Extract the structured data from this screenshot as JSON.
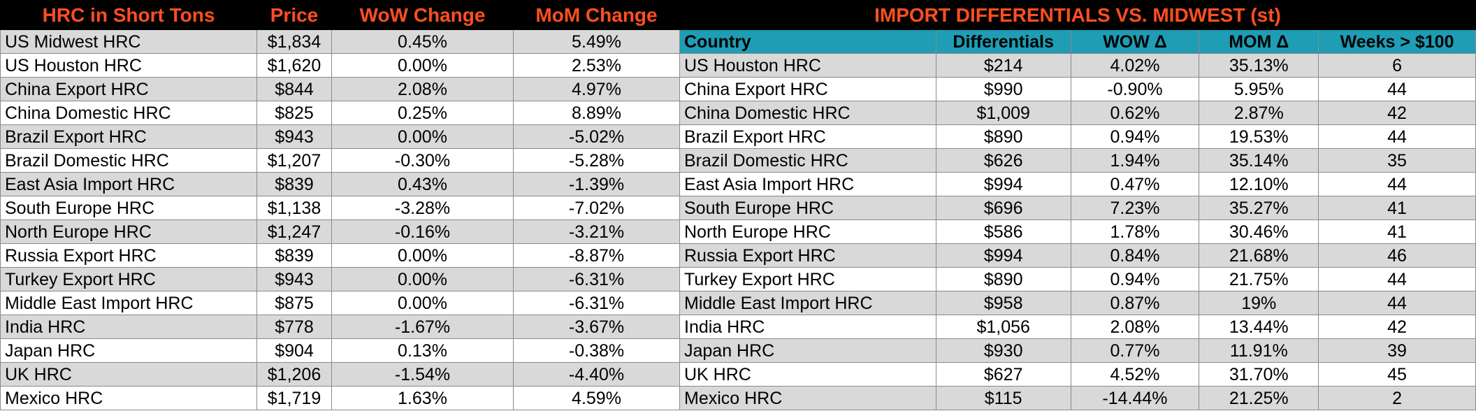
{
  "colors": {
    "title_bg": "#000000",
    "title_text": "#ff4f1f",
    "header_bg": "#1e9db4",
    "band_grey": "#d9d9d9",
    "band_white": "#ffffff"
  },
  "left_table": {
    "headers": [
      "HRC in Short Tons",
      "Price",
      "WoW Change",
      "MoM Change"
    ],
    "rows": [
      [
        "US Midwest HRC",
        "$1,834",
        "0.45%",
        "5.49%"
      ],
      [
        "US Houston HRC",
        "$1,620",
        "0.00%",
        "2.53%"
      ],
      [
        "China Export HRC",
        "$844",
        "2.08%",
        "4.97%"
      ],
      [
        "China Domestic HRC",
        "$825",
        "0.25%",
        "8.89%"
      ],
      [
        "Brazil Export HRC",
        "$943",
        "0.00%",
        "-5.02%"
      ],
      [
        "Brazil Domestic HRC",
        "$1,207",
        "-0.30%",
        "-5.28%"
      ],
      [
        "East Asia Import HRC",
        "$839",
        "0.43%",
        "-1.39%"
      ],
      [
        "South Europe HRC",
        "$1,138",
        "-3.28%",
        "-7.02%"
      ],
      [
        "North Europe HRC",
        "$1,247",
        "-0.16%",
        "-3.21%"
      ],
      [
        "Russia Export HRC",
        "$839",
        "0.00%",
        "-8.87%"
      ],
      [
        "Turkey Export HRC",
        "$943",
        "0.00%",
        "-6.31%"
      ],
      [
        "Middle East Import HRC",
        "$875",
        "0.00%",
        "-6.31%"
      ],
      [
        "India HRC",
        "$778",
        "-1.67%",
        "-3.67%"
      ],
      [
        "Japan HRC",
        "$904",
        "0.13%",
        "-0.38%"
      ],
      [
        "UK HRC",
        "$1,206",
        "-1.54%",
        "-4.40%"
      ],
      [
        "Mexico HRC",
        "$1,719",
        "1.63%",
        "4.59%"
      ]
    ]
  },
  "right_table": {
    "title": "IMPORT DIFFERENTIALS VS. MIDWEST (st)",
    "headers": [
      "Country",
      "Differentials",
      "WOW Δ",
      "MOM Δ",
      "Weeks > $100"
    ],
    "rows": [
      [
        "US Houston HRC",
        "$214",
        "4.02%",
        "35.13%",
        "6"
      ],
      [
        "China Export HRC",
        "$990",
        "-0.90%",
        "5.95%",
        "44"
      ],
      [
        "China Domestic HRC",
        "$1,009",
        "0.62%",
        "2.87%",
        "42"
      ],
      [
        "Brazil Export HRC",
        "$890",
        "0.94%",
        "19.53%",
        "44"
      ],
      [
        "Brazil Domestic HRC",
        "$626",
        "1.94%",
        "35.14%",
        "35"
      ],
      [
        "East Asia Import HRC",
        "$994",
        "0.47%",
        "12.10%",
        "44"
      ],
      [
        "South Europe HRC",
        "$696",
        "7.23%",
        "35.27%",
        "41"
      ],
      [
        "North Europe HRC",
        "$586",
        "1.78%",
        "30.46%",
        "41"
      ],
      [
        "Russia Export HRC",
        "$994",
        "0.84%",
        "21.68%",
        "46"
      ],
      [
        "Turkey Export HRC",
        "$890",
        "0.94%",
        "21.75%",
        "44"
      ],
      [
        "Middle East Import HRC",
        "$958",
        "0.87%",
        "19%",
        "44"
      ],
      [
        "India HRC",
        "$1,056",
        "2.08%",
        "13.44%",
        "42"
      ],
      [
        "Japan HRC",
        "$930",
        "0.77%",
        "11.91%",
        "39"
      ],
      [
        "UK HRC",
        "$627",
        "4.52%",
        "31.70%",
        "45"
      ],
      [
        "Mexico HRC",
        "$115",
        "-14.44%",
        "21.25%",
        "2"
      ]
    ]
  }
}
